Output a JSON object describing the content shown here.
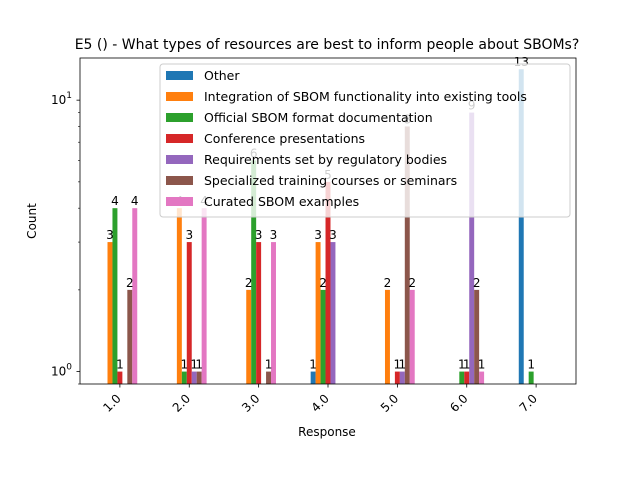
{
  "chart_data": {
    "type": "bar",
    "title": "E5 () - What types of resources are best to inform people about SBOMs?",
    "xlabel": "Response",
    "ylabel": "Count",
    "yscale": "log",
    "ylim": [
      0.9,
      14.3
    ],
    "y_ticks": [
      {
        "value": 1,
        "label_base": "10",
        "label_exp": "0"
      },
      {
        "value": 10,
        "label_base": "10",
        "label_exp": "1"
      }
    ],
    "categories": [
      "1.0",
      "2.0",
      "3.0",
      "4.0",
      "5.0",
      "6.0",
      "7.0"
    ],
    "grid": false,
    "legend_position": "top-right",
    "series": [
      {
        "name": "Other",
        "color": "#1f77b4",
        "values": [
          null,
          null,
          null,
          1,
          null,
          null,
          13
        ]
      },
      {
        "name": "Integration of SBOM functionality into existing tools",
        "color": "#ff7f0e",
        "values": [
          3,
          4,
          2,
          3,
          2,
          null,
          null
        ]
      },
      {
        "name": "Official SBOM format documentation",
        "color": "#2ca02c",
        "values": [
          4,
          1,
          6,
          2,
          null,
          1,
          1
        ]
      },
      {
        "name": "Conference presentations",
        "color": "#d62728",
        "values": [
          1,
          3,
          3,
          5,
          1,
          1,
          null
        ]
      },
      {
        "name": "Requirements set by regulatory bodies",
        "color": "#9467bd",
        "values": [
          null,
          1,
          null,
          3,
          1,
          9,
          null
        ]
      },
      {
        "name": "Specialized training courses or seminars",
        "color": "#8c564b",
        "values": [
          2,
          1,
          1,
          null,
          8,
          2,
          null
        ]
      },
      {
        "name": "Curated SBOM examples",
        "color": "#e377c2",
        "values": [
          4,
          4,
          3,
          null,
          2,
          1,
          null
        ]
      }
    ]
  }
}
